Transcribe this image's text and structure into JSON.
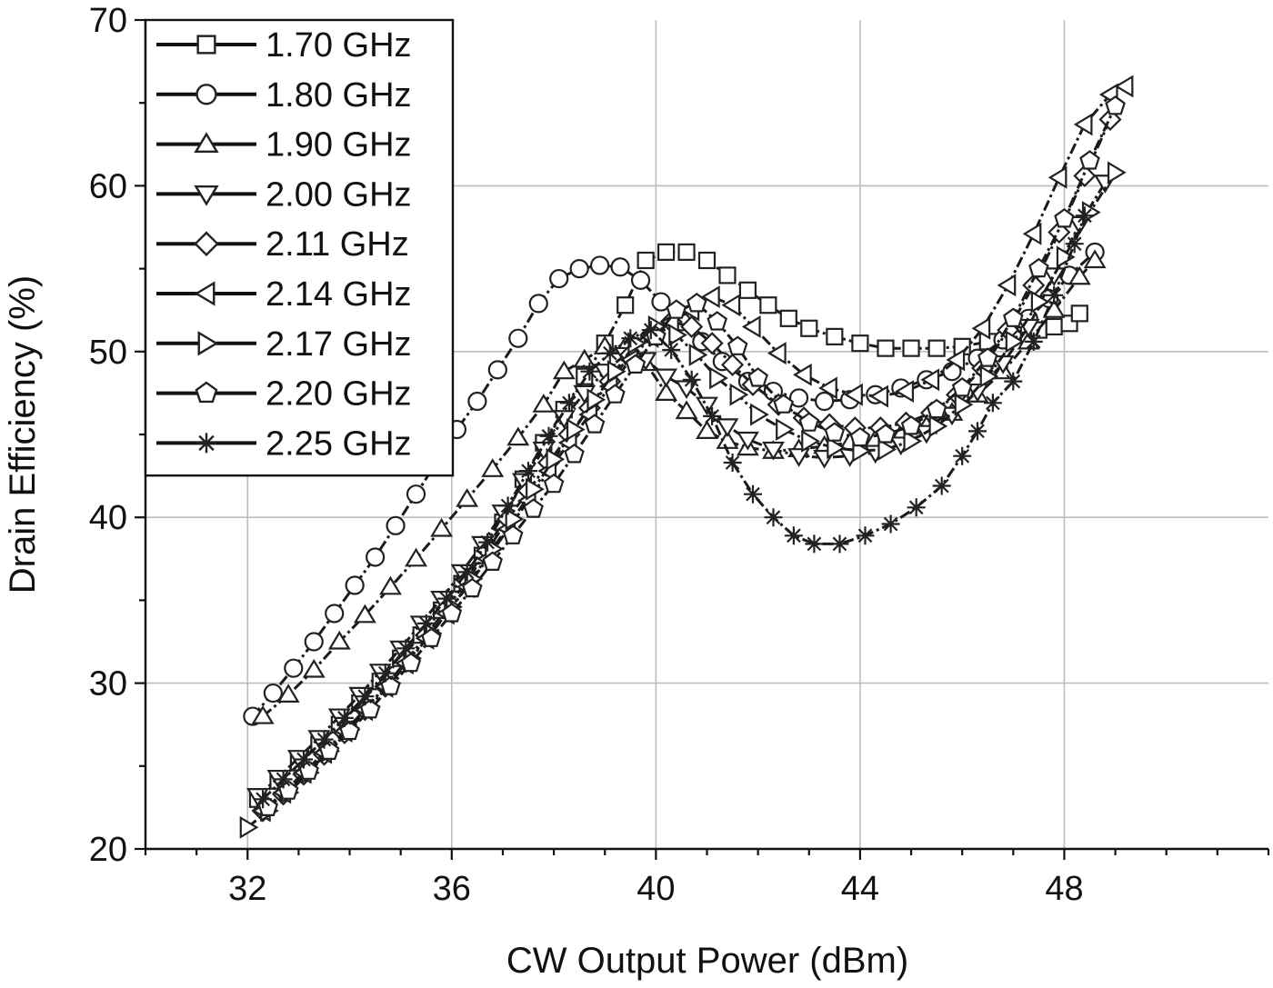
{
  "chart_data": {
    "type": "line",
    "title": "",
    "xlabel": "CW Output Power (dBm)",
    "ylabel": "Drain Efficiency (%)",
    "xlim": [
      30,
      52
    ],
    "ylim": [
      20,
      70
    ],
    "xticks": [
      32,
      36,
      40,
      44,
      48
    ],
    "xtick_labels": [
      "32",
      "36",
      "40",
      "44",
      "48"
    ],
    "yticks": [
      20,
      30,
      40,
      50,
      60,
      70
    ],
    "ytick_labels": [
      "20",
      "30",
      "40",
      "50",
      "60",
      "70"
    ],
    "grid": true,
    "legend_position": "top-left",
    "series": [
      {
        "name": "1.70 GHz",
        "marker": "square",
        "x": [
          32.2,
          32.6,
          33.0,
          33.4,
          33.8,
          34.2,
          34.6,
          35.0,
          35.4,
          35.8,
          36.2,
          36.6,
          37.0,
          37.4,
          37.8,
          38.2,
          38.6,
          39.0,
          39.4,
          39.8,
          40.2,
          40.6,
          41.0,
          41.4,
          41.8,
          42.2,
          42.6,
          43.0,
          43.5,
          44.0,
          44.5,
          45.0,
          45.5,
          46.0,
          46.5,
          47.0,
          47.5,
          47.8,
          48.1,
          48.3
        ],
        "y": [
          23.0,
          24.1,
          25.2,
          26.3,
          27.5,
          28.8,
          30.1,
          31.5,
          32.9,
          34.4,
          36.0,
          37.7,
          39.7,
          42.3,
          44.5,
          46.5,
          48.5,
          50.5,
          52.8,
          55.5,
          56.0,
          56.0,
          55.5,
          54.6,
          53.7,
          52.8,
          52.0,
          51.4,
          50.9,
          50.5,
          50.2,
          50.2,
          50.2,
          50.3,
          50.6,
          51.0,
          51.3,
          51.5,
          51.7,
          52.3
        ]
      },
      {
        "name": "1.80 GHz",
        "marker": "circle",
        "x": [
          32.1,
          32.5,
          32.9,
          33.3,
          33.7,
          34.1,
          34.5,
          34.9,
          35.3,
          35.7,
          36.1,
          36.5,
          36.9,
          37.3,
          37.7,
          38.1,
          38.5,
          38.9,
          39.3,
          39.7,
          40.1,
          40.5,
          40.9,
          41.3,
          41.8,
          42.3,
          42.8,
          43.3,
          43.8,
          44.3,
          44.8,
          45.3,
          45.8,
          46.3,
          46.8,
          47.3,
          47.7,
          48.1,
          48.6
        ],
        "y": [
          28.0,
          29.4,
          30.9,
          32.5,
          34.2,
          35.9,
          37.6,
          39.5,
          41.4,
          43.3,
          45.3,
          47.0,
          48.9,
          50.8,
          52.9,
          54.4,
          55.0,
          55.2,
          55.1,
          54.3,
          53.0,
          51.8,
          50.6,
          49.4,
          48.2,
          47.6,
          47.2,
          47.0,
          47.1,
          47.4,
          47.8,
          48.3,
          48.8,
          49.6,
          50.7,
          52.0,
          53.2,
          54.6,
          56.0
        ]
      },
      {
        "name": "1.90 GHz",
        "marker": "triangle-up",
        "x": [
          32.3,
          32.8,
          33.3,
          33.8,
          34.3,
          34.8,
          35.3,
          35.8,
          36.3,
          36.8,
          37.3,
          37.8,
          38.2,
          38.6,
          39.0,
          39.4,
          39.8,
          40.2,
          40.6,
          41.0,
          41.4,
          41.8,
          42.3,
          42.8,
          43.3,
          43.8,
          44.3,
          44.8,
          45.3,
          45.8,
          46.3,
          46.8,
          47.3,
          47.8,
          48.3,
          48.6
        ],
        "y": [
          28.0,
          29.3,
          30.8,
          32.5,
          34.1,
          35.8,
          37.5,
          39.3,
          41.1,
          42.9,
          44.8,
          46.8,
          48.8,
          49.5,
          50.3,
          50.3,
          49.3,
          47.5,
          46.4,
          45.2,
          44.6,
          44.2,
          44.0,
          44.1,
          44.3,
          44.5,
          44.7,
          45.0,
          45.5,
          46.3,
          47.4,
          48.8,
          50.6,
          52.5,
          54.5,
          55.5
        ]
      },
      {
        "name": "2.00 GHz",
        "marker": "triangle-down",
        "x": [
          32.2,
          32.6,
          33.0,
          33.4,
          33.8,
          34.2,
          34.6,
          35.0,
          35.4,
          35.8,
          36.2,
          36.6,
          37.0,
          37.4,
          37.8,
          38.2,
          38.6,
          39.0,
          39.4,
          39.8,
          40.2,
          40.6,
          41.0,
          41.4,
          41.8,
          42.3,
          42.8,
          43.3,
          43.8,
          44.3,
          44.8,
          45.3,
          45.8,
          46.3,
          46.8,
          47.3,
          47.8,
          48.3,
          48.8
        ],
        "y": [
          23.2,
          24.3,
          25.5,
          26.7,
          28.0,
          29.3,
          30.7,
          32.1,
          33.6,
          35.1,
          36.7,
          38.4,
          40.3,
          42.2,
          44.1,
          46.0,
          47.5,
          48.8,
          49.8,
          49.5,
          48.5,
          47.8,
          46.8,
          45.5,
          44.7,
          44.1,
          43.7,
          43.6,
          43.7,
          43.9,
          44.4,
          45.1,
          46.2,
          47.6,
          49.3,
          51.5,
          54.6,
          57.7,
          60.2
        ]
      },
      {
        "name": "2.11 GHz",
        "marker": "diamond",
        "x": [
          32.3,
          32.7,
          33.1,
          33.5,
          33.9,
          34.3,
          34.7,
          35.1,
          35.5,
          35.9,
          36.3,
          36.7,
          37.1,
          37.5,
          37.9,
          38.3,
          38.7,
          39.1,
          39.5,
          39.9,
          40.3,
          40.7,
          41.1,
          41.5,
          41.9,
          42.4,
          42.9,
          43.4,
          43.9,
          44.4,
          44.9,
          45.4,
          45.9,
          46.4,
          46.9,
          47.4,
          47.9,
          48.4,
          48.9
        ],
        "y": [
          22.3,
          23.3,
          24.5,
          25.7,
          27.0,
          28.4,
          29.8,
          31.3,
          32.9,
          34.5,
          36.2,
          38.0,
          39.9,
          41.6,
          43.3,
          45.0,
          46.6,
          48.2,
          49.8,
          51.0,
          51.8,
          51.5,
          50.5,
          49.2,
          48.0,
          46.8,
          46.0,
          45.6,
          45.4,
          45.4,
          45.7,
          46.3,
          47.4,
          49.0,
          51.3,
          54.0,
          57.2,
          60.6,
          64.0
        ]
      },
      {
        "name": "2.14 GHz",
        "marker": "triangle-left",
        "x": [
          32.3,
          32.7,
          33.1,
          33.5,
          33.9,
          34.3,
          34.7,
          35.1,
          35.5,
          35.9,
          36.3,
          36.7,
          37.1,
          37.5,
          37.9,
          38.3,
          38.7,
          39.1,
          39.5,
          39.9,
          40.3,
          40.7,
          41.1,
          41.5,
          41.9,
          42.4,
          42.9,
          43.4,
          43.9,
          44.4,
          44.9,
          45.4,
          45.9,
          46.4,
          46.9,
          47.4,
          47.9,
          48.4,
          48.9,
          49.2
        ],
        "y": [
          22.3,
          23.4,
          24.6,
          25.8,
          27.1,
          28.4,
          29.8,
          31.2,
          32.7,
          34.2,
          35.8,
          37.5,
          39.3,
          41.0,
          42.8,
          44.5,
          46.2,
          47.9,
          49.5,
          50.9,
          51.8,
          52.5,
          53.3,
          52.8,
          51.5,
          49.9,
          48.6,
          47.8,
          47.4,
          47.3,
          47.6,
          48.3,
          49.5,
          51.4,
          54.0,
          57.1,
          60.5,
          63.7,
          65.5,
          66.0
        ]
      },
      {
        "name": "2.17 GHz",
        "marker": "triangle-right",
        "x": [
          32.0,
          32.4,
          32.8,
          33.2,
          33.6,
          34.0,
          34.4,
          34.8,
          35.2,
          35.6,
          36.0,
          36.4,
          36.8,
          37.2,
          37.6,
          38.0,
          38.4,
          38.8,
          39.2,
          39.6,
          40.0,
          40.4,
          40.8,
          41.2,
          41.6,
          42.0,
          42.5,
          43.0,
          43.5,
          44.0,
          44.5,
          45.0,
          45.5,
          46.0,
          46.5,
          47.0,
          47.5,
          48.0,
          48.5,
          49.0
        ],
        "y": [
          21.3,
          22.3,
          23.4,
          24.6,
          25.9,
          27.2,
          28.6,
          30.0,
          31.5,
          33.0,
          34.6,
          36.3,
          38.1,
          39.9,
          41.7,
          43.5,
          45.3,
          47.1,
          48.8,
          50.5,
          51.5,
          51.0,
          49.8,
          48.4,
          47.4,
          46.2,
          45.3,
          44.6,
          44.2,
          44.0,
          44.1,
          44.6,
          45.5,
          46.8,
          48.5,
          50.6,
          53.0,
          55.7,
          58.4,
          60.8
        ]
      },
      {
        "name": "2.20 GHz",
        "marker": "pentagon",
        "x": [
          32.4,
          32.8,
          33.2,
          33.6,
          34.0,
          34.4,
          34.8,
          35.2,
          35.6,
          36.0,
          36.4,
          36.8,
          37.2,
          37.6,
          38.0,
          38.4,
          38.8,
          39.2,
          39.6,
          40.0,
          40.4,
          40.8,
          41.2,
          41.6,
          42.0,
          42.5,
          43.0,
          43.5,
          44.0,
          44.5,
          45.0,
          45.5,
          46.0,
          46.5,
          47.0,
          47.5,
          48.0,
          48.5,
          49.0
        ],
        "y": [
          22.5,
          23.5,
          24.7,
          25.9,
          27.1,
          28.4,
          29.8,
          31.2,
          32.7,
          34.2,
          35.7,
          37.3,
          38.9,
          40.5,
          42.0,
          43.8,
          45.6,
          47.4,
          49.2,
          50.9,
          52.5,
          52.9,
          51.8,
          50.3,
          48.4,
          46.8,
          45.7,
          45.1,
          44.8,
          45.0,
          45.5,
          46.5,
          47.8,
          49.6,
          52.0,
          55.0,
          58.0,
          61.5,
          64.8
        ]
      },
      {
        "name": "2.25 GHz",
        "marker": "star",
        "x": [
          32.3,
          32.7,
          33.1,
          33.5,
          33.9,
          34.3,
          34.7,
          35.1,
          35.5,
          35.9,
          36.3,
          36.7,
          37.1,
          37.5,
          37.9,
          38.3,
          38.7,
          39.1,
          39.5,
          39.9,
          40.3,
          40.7,
          41.1,
          41.5,
          41.9,
          42.3,
          42.7,
          43.1,
          43.6,
          44.1,
          44.6,
          45.1,
          45.6,
          46.0,
          46.3,
          46.6,
          47.0,
          47.4,
          47.8,
          48.2,
          48.4
        ],
        "y": [
          23.0,
          24.2,
          25.4,
          26.6,
          27.9,
          29.2,
          30.6,
          32.1,
          33.6,
          35.1,
          36.7,
          38.5,
          40.7,
          42.8,
          44.9,
          46.9,
          48.8,
          49.9,
          50.8,
          51.3,
          50.1,
          48.3,
          46.1,
          43.3,
          41.4,
          40.0,
          38.9,
          38.4,
          38.4,
          38.9,
          39.6,
          40.6,
          41.9,
          43.7,
          45.2,
          46.9,
          48.2,
          50.6,
          53.4,
          56.5,
          58.2
        ]
      }
    ]
  }
}
